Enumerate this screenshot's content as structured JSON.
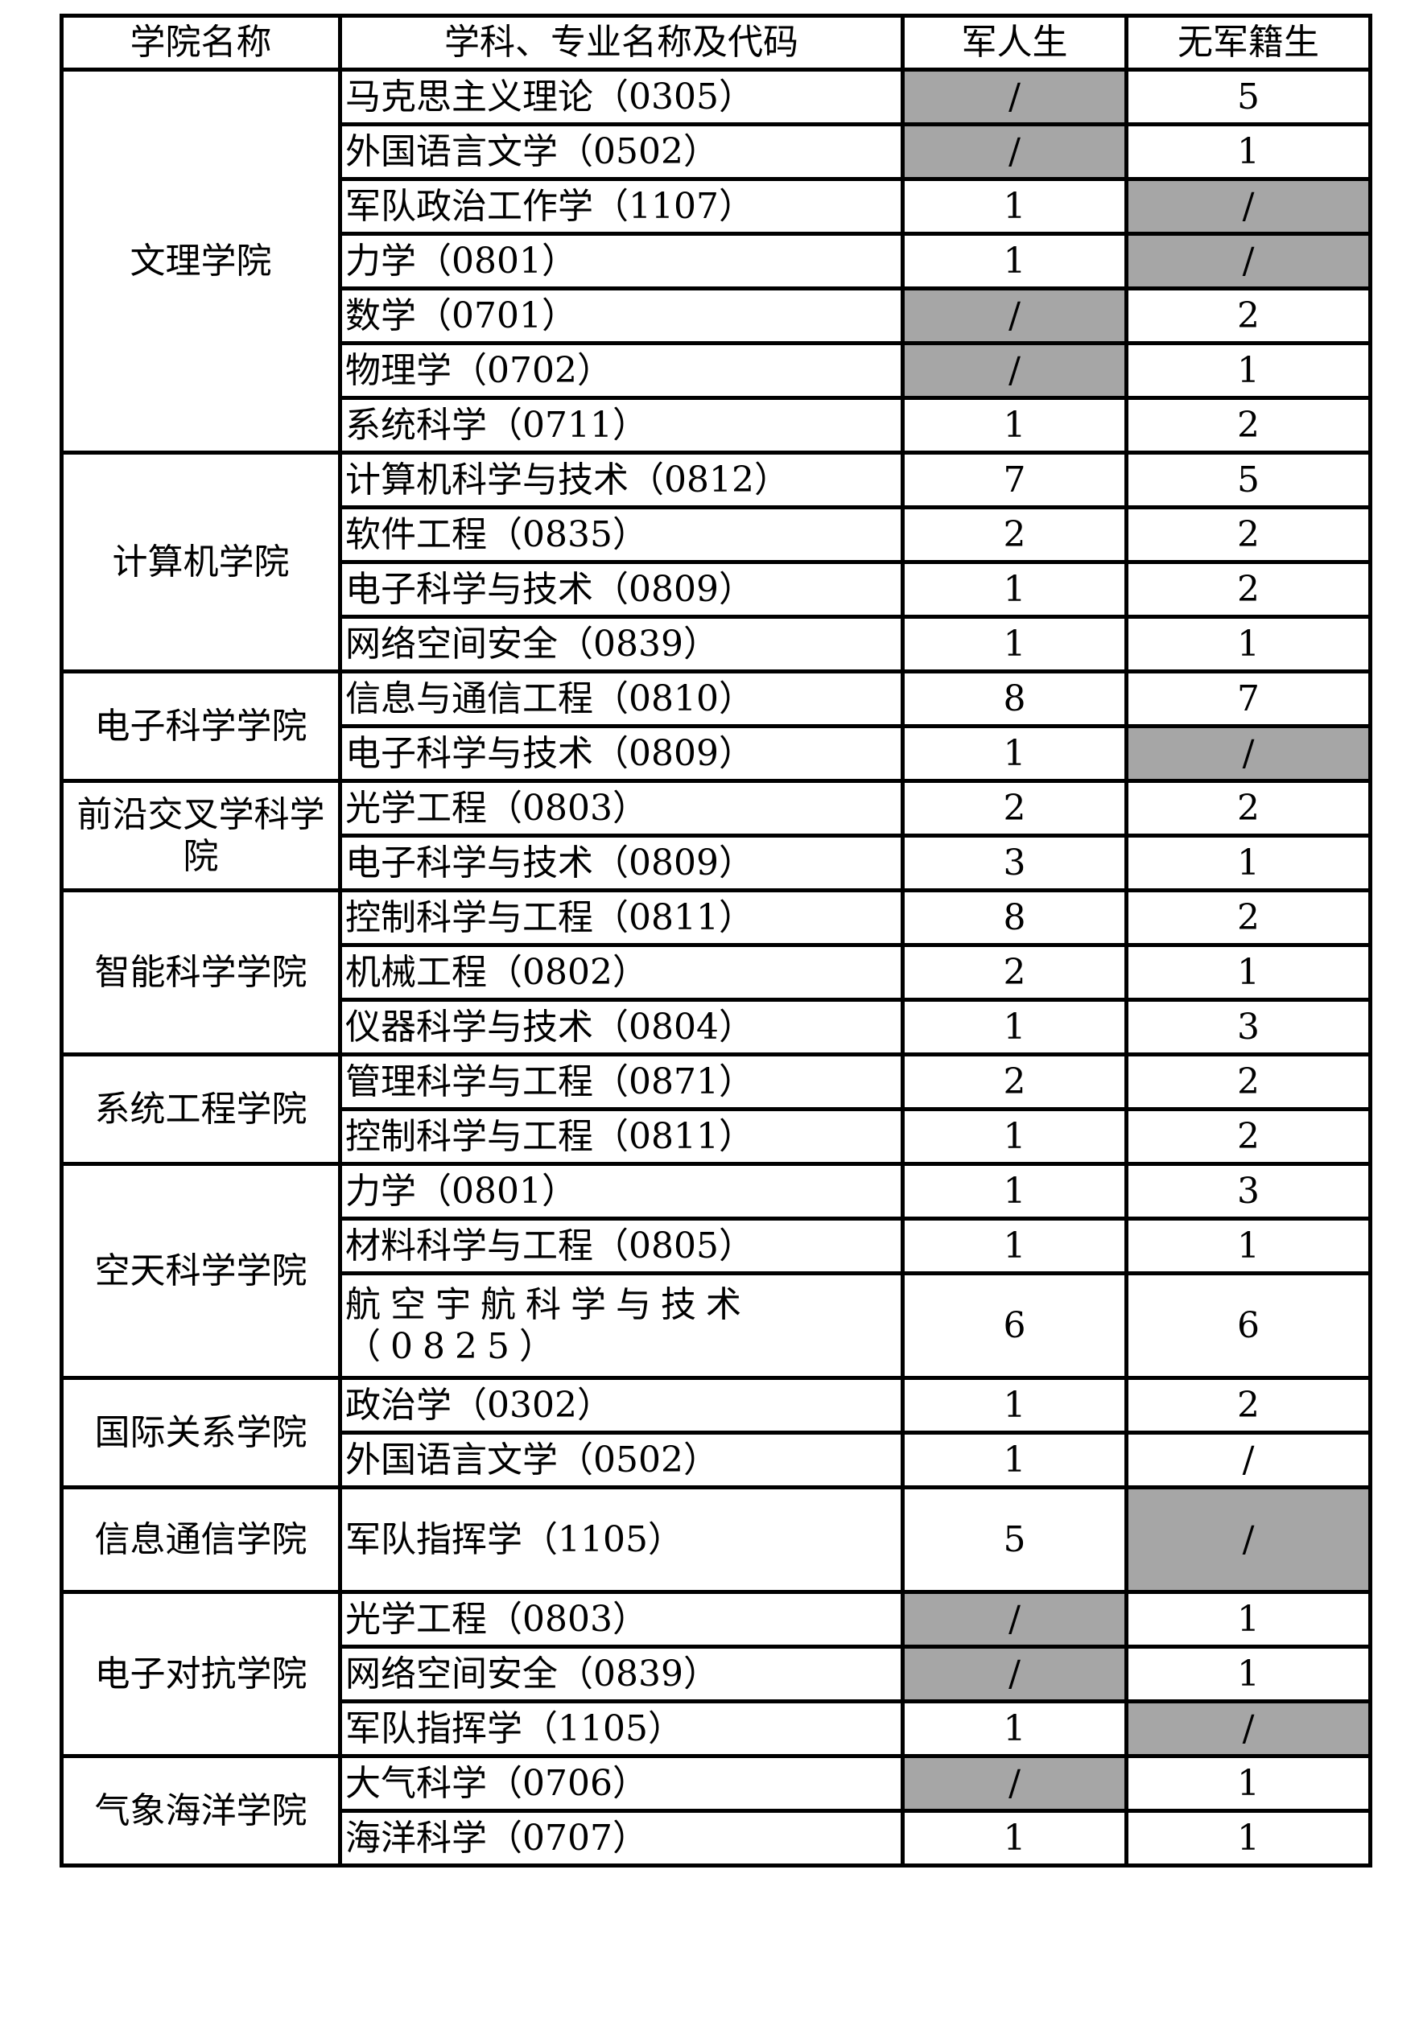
{
  "header": [
    "学院名称",
    "学科、专业名称及代码",
    "军人生",
    "无军籍生"
  ],
  "colors": {
    "unavailable_fill": "#a6a6a6",
    "border": "#000000"
  },
  "colleges": [
    {
      "name": "文理学院",
      "rows": [
        {
          "major": "马克思主义理论（0305）",
          "military": "/",
          "civilian": "5"
        },
        {
          "major": "外国语言文学（0502）",
          "military": "/",
          "civilian": "1"
        },
        {
          "major": "军队政治工作学（1107）",
          "military": "1",
          "civilian": "/"
        },
        {
          "major": "力学（0801）",
          "military": "1",
          "civilian": "/"
        },
        {
          "major": "数学（0701）",
          "military": "/",
          "civilian": "2"
        },
        {
          "major": "物理学（0702）",
          "military": "/",
          "civilian": "1"
        },
        {
          "major": "系统科学（0711）",
          "military": "1",
          "civilian": "2"
        }
      ]
    },
    {
      "name": "计算机学院",
      "rows": [
        {
          "major": "计算机科学与技术（0812）",
          "military": "7",
          "civilian": "5"
        },
        {
          "major": "软件工程（0835）",
          "military": "2",
          "civilian": "2"
        },
        {
          "major": "电子科学与技术（0809）",
          "military": "1",
          "civilian": "2"
        },
        {
          "major": "网络空间安全（0839）",
          "military": "1",
          "civilian": "1"
        }
      ]
    },
    {
      "name": "电子科学学院",
      "rows": [
        {
          "major": "信息与通信工程（0810）",
          "military": "8",
          "civilian": "7"
        },
        {
          "major": "电子科学与技术（0809）",
          "military": "1",
          "civilian": "/"
        }
      ]
    },
    {
      "name": "前沿交叉学科学院",
      "rows": [
        {
          "major": "光学工程（0803）",
          "military": "2",
          "civilian": "2"
        },
        {
          "major": "电子科学与技术（0809）",
          "military": "3",
          "civilian": "1"
        }
      ]
    },
    {
      "name": "智能科学学院",
      "rows": [
        {
          "major": "控制科学与工程（0811）",
          "military": "8",
          "civilian": "2"
        },
        {
          "major": "机械工程（0802）",
          "military": "2",
          "civilian": "1"
        },
        {
          "major": "仪器科学与技术（0804）",
          "military": "1",
          "civilian": "3"
        }
      ]
    },
    {
      "name": "系统工程学院",
      "rows": [
        {
          "major": "管理科学与工程（0871）",
          "military": "2",
          "civilian": "2"
        },
        {
          "major": "控制科学与工程（0811）",
          "military": "1",
          "civilian": "2"
        }
      ]
    },
    {
      "name": "空天科学学院",
      "rows": [
        {
          "major": "力学（0801）",
          "military": "1",
          "civilian": "3"
        },
        {
          "major": "材料科学与工程（0805）",
          "military": "1",
          "civilian": "1"
        },
        {
          "major": "航空宇航科学与技术（0825）",
          "military": "6",
          "civilian": "6",
          "tall": true
        }
      ]
    },
    {
      "name": "国际关系学院",
      "rows": [
        {
          "major": "政治学（0302）",
          "military": "1",
          "civilian": "2"
        },
        {
          "major": "外国语言文学（0502）",
          "military": "1",
          "civilian": "/",
          "civilian_plain": true
        }
      ]
    },
    {
      "name": "信息通信学院",
      "rows": [
        {
          "major": "军队指挥学（1105）",
          "military": "5",
          "civilian": "/",
          "tall": true
        }
      ]
    },
    {
      "name": "电子对抗学院",
      "rows": [
        {
          "major": "光学工程（0803）",
          "military": "/",
          "civilian": "1"
        },
        {
          "major": "网络空间安全（0839）",
          "military": "/",
          "civilian": "1"
        },
        {
          "major": "军队指挥学（1105）",
          "military": "1",
          "civilian": "/"
        }
      ]
    },
    {
      "name": "气象海洋学院",
      "rows": [
        {
          "major": "大气科学（0706）",
          "military": "/",
          "civilian": "1"
        },
        {
          "major": "海洋科学（0707）",
          "military": "1",
          "civilian": "1"
        }
      ]
    }
  ]
}
